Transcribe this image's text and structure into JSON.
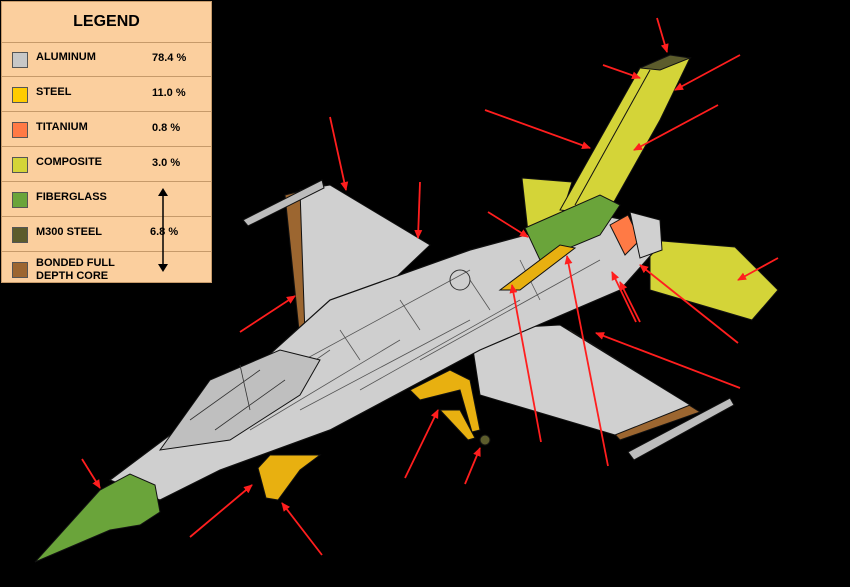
{
  "legend": {
    "title": "LEGEND",
    "items": [
      {
        "label": "ALUMINUM",
        "percent": "78.4 %",
        "color": "#c8c8c8"
      },
      {
        "label": "STEEL",
        "percent": "11.0 %",
        "color": "#ffcc00"
      },
      {
        "label": "TITANIUM",
        "percent": "0.8 %",
        "color": "#ff7a45"
      },
      {
        "label": "COMPOSITE",
        "percent": "3.0 %",
        "color": "#d4d438"
      },
      {
        "label": "FIBERGLASS",
        "percent": "",
        "color": "#6aa43a"
      },
      {
        "label": "M300 STEEL",
        "percent": "",
        "color": "#5c5c2c"
      },
      {
        "label": "BONDED FULL DEPTH CORE",
        "percent": "",
        "color": "#9c6630"
      }
    ],
    "group_percent": "6.8 %"
  },
  "colors": {
    "background": "#000000",
    "arrow": "#ff1e1e",
    "aluminum": "#cfcfcf",
    "fuselage_dark": "#b0b0b0"
  }
}
